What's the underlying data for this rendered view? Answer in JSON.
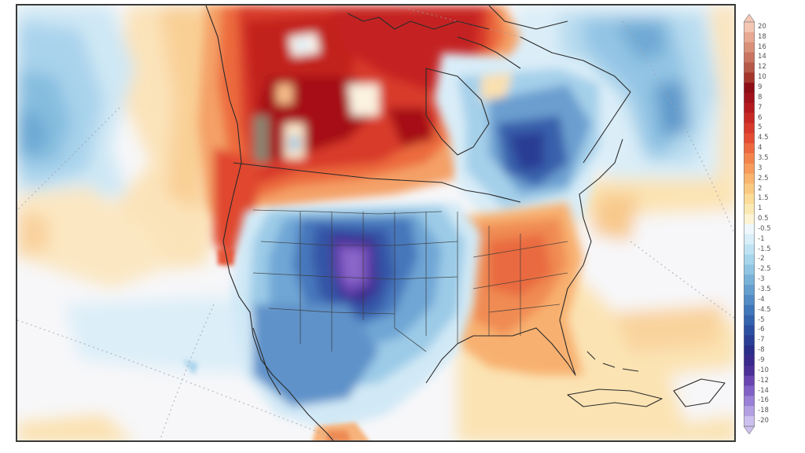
{
  "chart_data": {
    "type": "heatmap",
    "subtype": "filled-contour map (temperature anomaly)",
    "title": "",
    "region": "North America",
    "colorbar": {
      "orientation": "vertical",
      "position": "right",
      "extend": "both",
      "tick_labels": [
        "20",
        "18",
        "16",
        "14",
        "12",
        "10",
        "9",
        "8",
        "7",
        "6",
        "5",
        "4.5",
        "4",
        "3.5",
        "3",
        "2.5",
        "2",
        "1.5",
        "1",
        "0.5",
        "-0.5",
        "-1",
        "-1.5",
        "-2",
        "-2.5",
        "-3",
        "-3.5",
        "-4",
        "-4.5",
        "-5",
        "-6",
        "-7",
        "-8",
        "-9",
        "-10",
        "-12",
        "-14",
        "-16",
        "-18",
        "-20"
      ],
      "colors": [
        "#f3c7b4",
        "#e8a993",
        "#d99079",
        "#c97462",
        "#b6584a",
        "#a5352c",
        "#8f0d16",
        "#a1121b",
        "#b5191f",
        "#c82824",
        "#d8392b",
        "#e44d33",
        "#ed6a40",
        "#f3844c",
        "#f79c5b",
        "#f9b46d",
        "#fac981",
        "#fbdc98",
        "#fbe9b4",
        "#fdf4d6",
        "#eef7fb",
        "#d8eef8",
        "#c0e3f3",
        "#a6d5ec",
        "#8fc5e3",
        "#78b2d9",
        "#649fcf",
        "#528bc5",
        "#4077ba",
        "#3463ae",
        "#2c4fa2",
        "#2a3e96",
        "#2c2f8a",
        "#3a2a8c",
        "#4c2f97",
        "#6a45b1",
        "#8261c6",
        "#9a80d6",
        "#b3a0e3",
        "#cbc0ee"
      ],
      "range": [
        -20,
        20
      ]
    },
    "features": [
      {
        "name": "Western Canada / Pacific Northwest",
        "anomaly": "warm",
        "approx_value": "6 to 9"
      },
      {
        "name": "Hudson Bay / Nunavut",
        "anomaly": "warm",
        "approx_value": "5 to 8"
      },
      {
        "name": "Central Rockies / High Plains (Colorado, Wyoming)",
        "anomaly": "cold",
        "approx_value": "-8 to -10"
      },
      {
        "name": "Southwest US / Northern Mexico",
        "anomaly": "cold",
        "approx_value": "-3 to -5"
      },
      {
        "name": "Southeast US",
        "anomaly": "warm",
        "approx_value": "2 to 4"
      },
      {
        "name": "Quebec / Ontario",
        "anomaly": "cold",
        "approx_value": "-4 to -6"
      },
      {
        "name": "North Atlantic / Labrador Sea",
        "anomaly": "cold",
        "approx_value": "-2 to -3"
      },
      {
        "name": "Northeast Pacific (west edge)",
        "anomaly": "cold",
        "approx_value": "-1.5 to -3"
      },
      {
        "name": "Eastern Pacific off Baja",
        "anomaly": "cold",
        "approx_value": "-0.5 to -1.5"
      }
    ],
    "grid": "dotted lat/lon graticule"
  },
  "map": {
    "frame_color": "#3a3a3a",
    "background": "#f7f7f9"
  }
}
